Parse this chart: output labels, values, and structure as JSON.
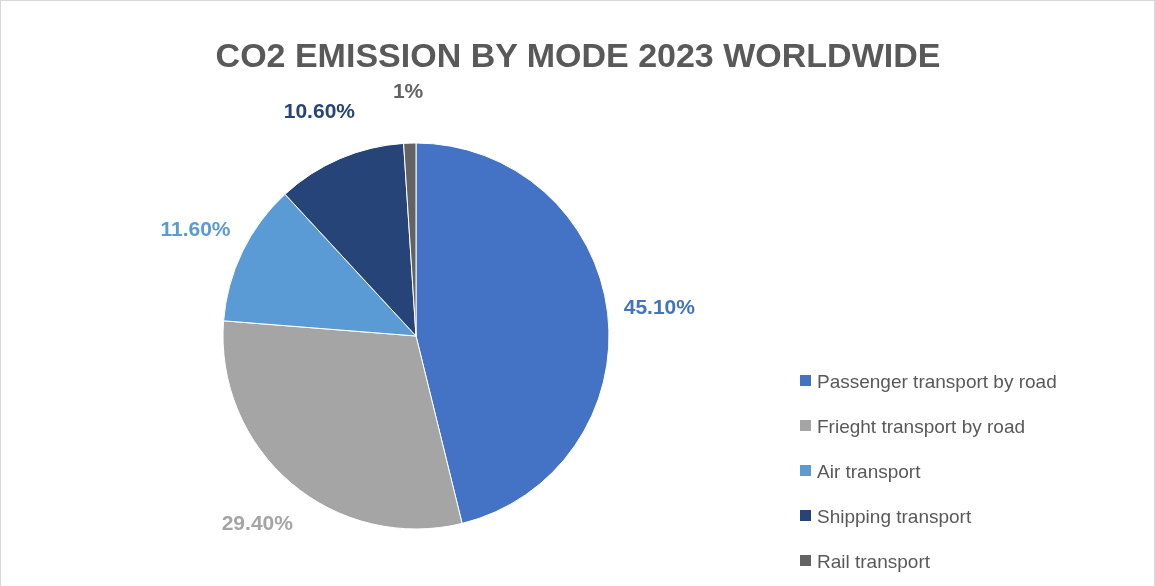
{
  "chart_data": {
    "type": "pie",
    "title": "CO2 EMISSION BY MODE 2023 WORLDWIDE",
    "categories": [
      "Passenger transport by road",
      "Frieght transport by road",
      "Air transport",
      "Shipping transport",
      "Rail transport"
    ],
    "values": [
      45.1,
      29.4,
      11.6,
      10.6,
      1
    ],
    "colors": [
      "#4472c4",
      "#a5a5a5",
      "#5b9bd5",
      "#264478",
      "#636363"
    ],
    "value_labels": [
      "45.10%",
      "29.40%",
      "11.60%",
      "10.60%",
      "1%"
    ],
    "legend": "right"
  }
}
